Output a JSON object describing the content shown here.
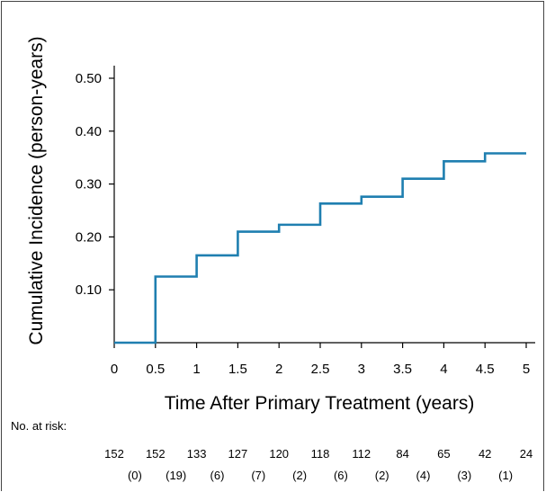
{
  "chart_data": {
    "type": "line",
    "step": true,
    "title": "",
    "xlabel": "Time After Primary Treatment (years)",
    "ylabel": "Cumulative Incidence (person-years)",
    "xlim": [
      0,
      5
    ],
    "ylim": [
      0,
      0.5
    ],
    "xticks": [
      "0",
      "0.5",
      "1",
      "1.5",
      "2",
      "2.5",
      "3",
      "3.5",
      "4",
      "4.5",
      "5"
    ],
    "yticks": [
      "0.10",
      "0.20",
      "0.30",
      "0.40",
      "0.50"
    ],
    "series": [
      {
        "x": [
          0,
          0.5,
          1,
          1.5,
          2,
          2.5,
          3,
          3.5,
          4,
          4.5,
          5
        ],
        "values": [
          0,
          0.125,
          0.165,
          0.21,
          0.223,
          0.263,
          0.276,
          0.31,
          0.343,
          0.358,
          0.358
        ],
        "color": "#1f7fb0"
      }
    ],
    "grid": false,
    "legend": "none",
    "risk_table": {
      "label": "No. at risk:",
      "at_risk": [
        "152",
        "152",
        "133",
        "127",
        "120",
        "118",
        "112",
        "84",
        "65",
        "42",
        "24"
      ],
      "events": [
        "(0)",
        "(19)",
        "(6)",
        "(7)",
        "(2)",
        "(6)",
        "(2)",
        "(4)",
        "(3)",
        "(1)"
      ]
    }
  }
}
